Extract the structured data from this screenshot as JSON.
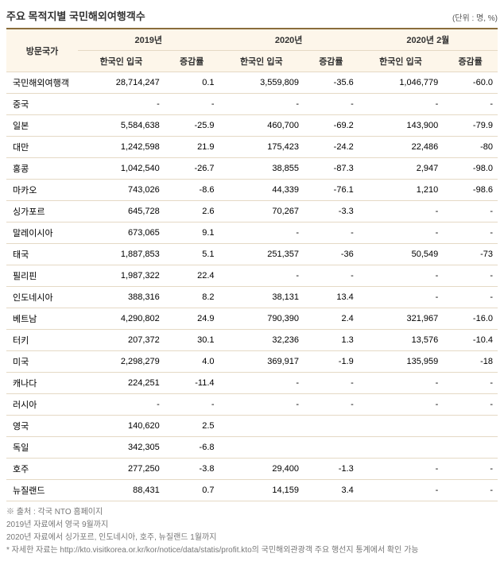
{
  "title": "주요 목적지별 국민해외여행객수",
  "unit": "(단위 : 명, %)",
  "header": {
    "country": "방문국가",
    "period1": "2019년",
    "period2": "2020년",
    "period3": "2020년 2월",
    "col_in": "한국인 입국",
    "col_rate": "증감률"
  },
  "rows": [
    {
      "label": "국민해외여행객",
      "c1": "28,714,247",
      "r1": "0.1",
      "c2": "3,559,809",
      "r2": "-35.6",
      "c3": "1,046,779",
      "r3": "-60.0"
    },
    {
      "label": "중국",
      "c1": "-",
      "r1": "-",
      "c2": "-",
      "r2": "-",
      "c3": "-",
      "r3": "-"
    },
    {
      "label": "일본",
      "c1": "5,584,638",
      "r1": "-25.9",
      "c2": "460,700",
      "r2": "-69.2",
      "c3": "143,900",
      "r3": "-79.9"
    },
    {
      "label": "대만",
      "c1": "1,242,598",
      "r1": "21.9",
      "c2": "175,423",
      "r2": "-24.2",
      "c3": "22,486",
      "r3": "-80"
    },
    {
      "label": "홍콩",
      "c1": "1,042,540",
      "r1": "-26.7",
      "c2": "38,855",
      "r2": "-87.3",
      "c3": "2,947",
      "r3": "-98.0"
    },
    {
      "label": "마카오",
      "c1": "743,026",
      "r1": "-8.6",
      "c2": "44,339",
      "r2": "-76.1",
      "c3": "1,210",
      "r3": "-98.6"
    },
    {
      "label": "싱가포르",
      "c1": "645,728",
      "r1": "2.6",
      "c2": "70,267",
      "r2": "-3.3",
      "c3": "-",
      "r3": "-"
    },
    {
      "label": "말레이시아",
      "c1": "673,065",
      "r1": "9.1",
      "c2": "-",
      "r2": "-",
      "c3": "-",
      "r3": "-"
    },
    {
      "label": "태국",
      "c1": "1,887,853",
      "r1": "5.1",
      "c2": "251,357",
      "r2": "-36",
      "c3": "50,549",
      "r3": "-73"
    },
    {
      "label": "필리핀",
      "c1": "1,987,322",
      "r1": "22.4",
      "c2": "-",
      "r2": "-",
      "c3": "-",
      "r3": "-"
    },
    {
      "label": "인도네시아",
      "c1": "388,316",
      "r1": "8.2",
      "c2": "38,131",
      "r2": "13.4",
      "c3": "-",
      "r3": "-"
    },
    {
      "label": "베트남",
      "c1": "4,290,802",
      "r1": "24.9",
      "c2": "790,390",
      "r2": "2.4",
      "c3": "321,967",
      "r3": "-16.0"
    },
    {
      "label": "터키",
      "c1": "207,372",
      "r1": "30.1",
      "c2": "32,236",
      "r2": "1.3",
      "c3": "13,576",
      "r3": "-10.4"
    },
    {
      "label": "미국",
      "c1": "2,298,279",
      "r1": "4.0",
      "c2": "369,917",
      "r2": "-1.9",
      "c3": "135,959",
      "r3": "-18"
    },
    {
      "label": "캐나다",
      "c1": "224,251",
      "r1": "-11.4",
      "c2": "-",
      "r2": "-",
      "c3": "-",
      "r3": "-"
    },
    {
      "label": "러시아",
      "c1": "-",
      "r1": "-",
      "c2": "-",
      "r2": "-",
      "c3": "-",
      "r3": "-"
    },
    {
      "label": "영국",
      "c1": "140,620",
      "r1": "2.5",
      "c2": "",
      "r2": "",
      "c3": "",
      "r3": ""
    },
    {
      "label": "독일",
      "c1": "342,305",
      "r1": "-6.8",
      "c2": "",
      "r2": "",
      "c3": "",
      "r3": ""
    },
    {
      "label": "호주",
      "c1": "277,250",
      "r1": "-3.8",
      "c2": "29,400",
      "r2": "-1.3",
      "c3": "-",
      "r3": "-"
    },
    {
      "label": "뉴질랜드",
      "c1": "88,431",
      "r1": "0.7",
      "c2": "14,159",
      "r2": "3.4",
      "c3": "-",
      "r3": "-"
    }
  ],
  "footnotes": [
    "※ 출처 : 각국 NTO 홈페이지",
    "2019년 자료에서 영국 9월까지",
    "2020년 자료에서 싱가포르, 인도네시아, 호주, 뉴질랜드 1월까지",
    "* 자세한 자료는 http://kto.visitkorea.or.kr/kor/notice/data/statis/profit.kto의 국민해외관광객 주요 행선지 통계에서 확인 가능"
  ],
  "style": {
    "header_bg": "#fdf6ea",
    "border_color": "#e5d9c5",
    "top_border": "#8a6d3b"
  }
}
